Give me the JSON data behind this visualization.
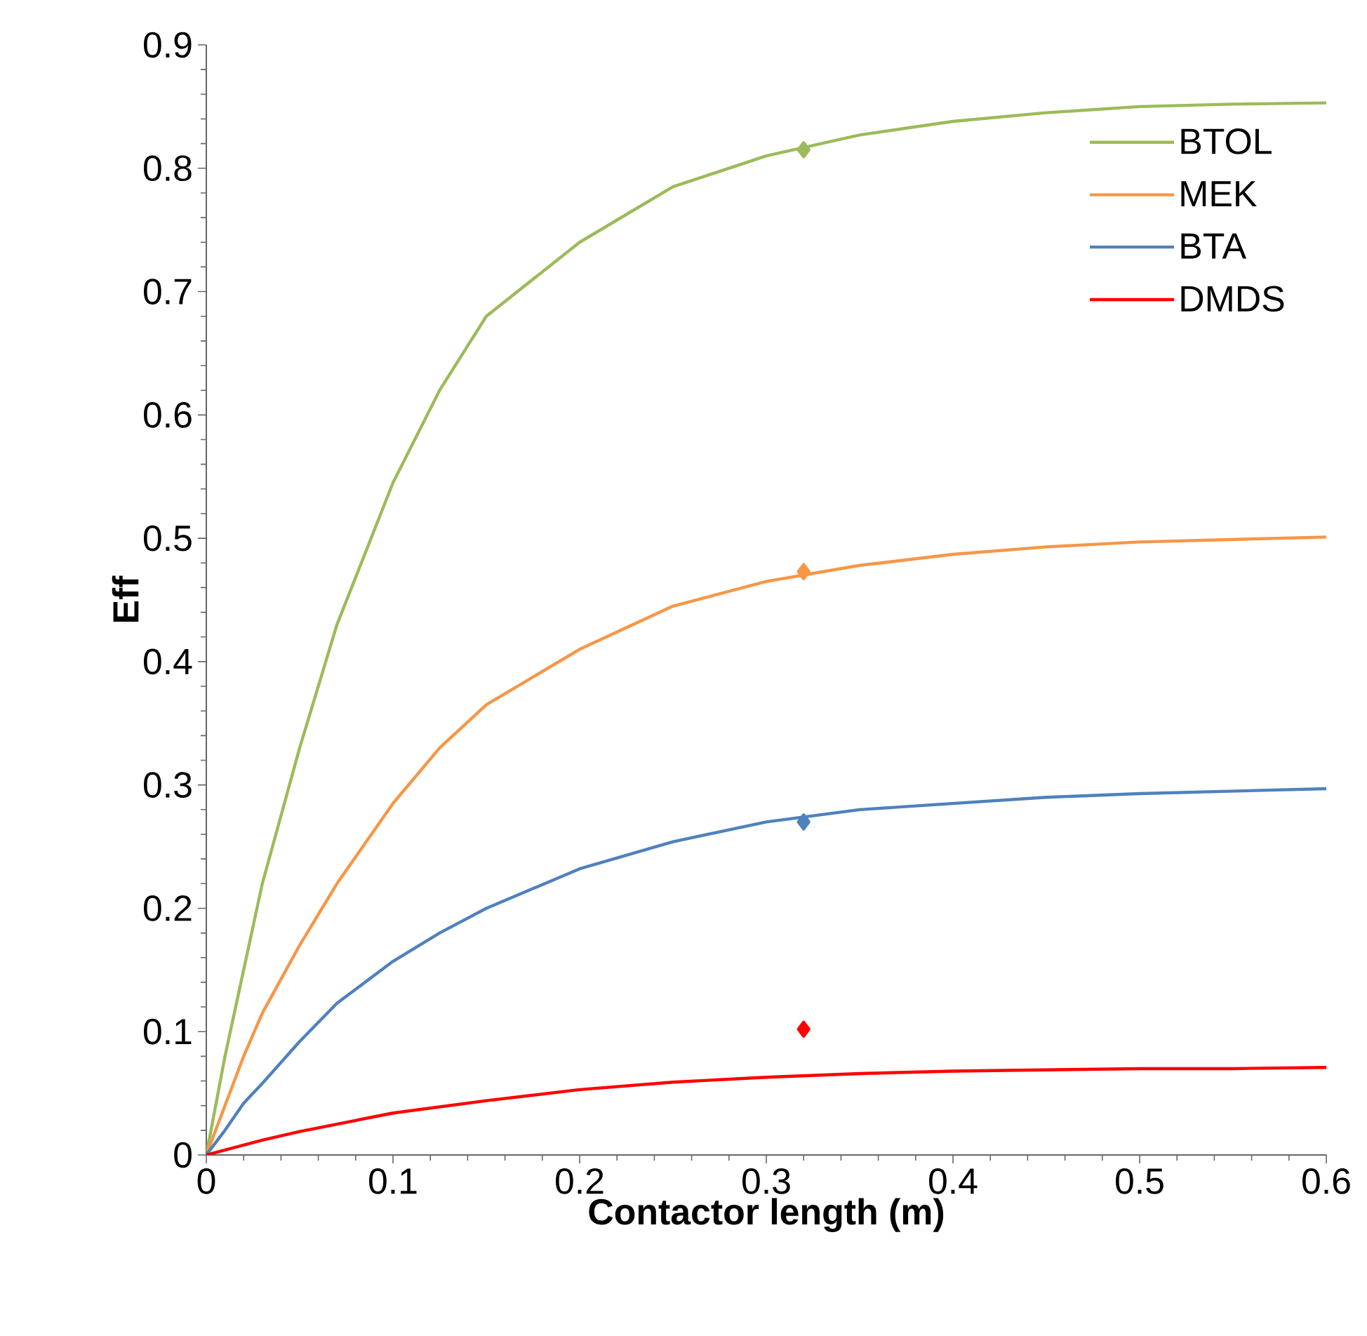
{
  "chart_data": {
    "type": "line",
    "xlabel": "Contactor length (m)",
    "ylabel": "Eff",
    "xlim": [
      0,
      0.6
    ],
    "ylim": [
      0,
      0.9
    ],
    "xticks": [
      0,
      0.1,
      0.2,
      0.3,
      0.4,
      0.5,
      0.6
    ],
    "yticks": [
      0,
      0.1,
      0.2,
      0.3,
      0.4,
      0.5,
      0.6,
      0.7,
      0.8,
      0.9
    ],
    "legend": "top right",
    "series": [
      {
        "name": "BTOL",
        "color": "#9bbb59",
        "x": [
          0,
          0.01,
          0.02,
          0.03,
          0.05,
          0.07,
          0.1,
          0.125,
          0.15,
          0.2,
          0.25,
          0.3,
          0.35,
          0.4,
          0.45,
          0.5,
          0.55,
          0.6
        ],
        "values": [
          0,
          0.08,
          0.15,
          0.22,
          0.33,
          0.43,
          0.545,
          0.62,
          0.68,
          0.74,
          0.785,
          0.81,
          0.827,
          0.838,
          0.845,
          0.85,
          0.852,
          0.853
        ]
      },
      {
        "name": "MEK",
        "color": "#f79646",
        "x": [
          0,
          0.01,
          0.02,
          0.03,
          0.05,
          0.07,
          0.1,
          0.125,
          0.15,
          0.2,
          0.25,
          0.3,
          0.35,
          0.4,
          0.45,
          0.5,
          0.55,
          0.6
        ],
        "values": [
          0,
          0.04,
          0.08,
          0.115,
          0.17,
          0.22,
          0.285,
          0.33,
          0.365,
          0.41,
          0.445,
          0.465,
          0.478,
          0.487,
          0.493,
          0.497,
          0.499,
          0.501
        ]
      },
      {
        "name": "BTA",
        "color": "#4f81bd",
        "x": [
          0,
          0.01,
          0.02,
          0.03,
          0.05,
          0.07,
          0.1,
          0.125,
          0.15,
          0.2,
          0.25,
          0.3,
          0.35,
          0.4,
          0.45,
          0.5,
          0.55,
          0.6
        ],
        "values": [
          0,
          0.02,
          0.042,
          0.058,
          0.092,
          0.123,
          0.157,
          0.18,
          0.2,
          0.232,
          0.254,
          0.27,
          0.28,
          0.285,
          0.29,
          0.293,
          0.295,
          0.297
        ]
      },
      {
        "name": "DMDS",
        "color": "#ff0000",
        "x": [
          0,
          0.01,
          0.02,
          0.03,
          0.05,
          0.07,
          0.1,
          0.125,
          0.15,
          0.2,
          0.25,
          0.3,
          0.35,
          0.4,
          0.45,
          0.5,
          0.55,
          0.6
        ],
        "values": [
          0,
          0.004,
          0.008,
          0.012,
          0.019,
          0.025,
          0.034,
          0.039,
          0.044,
          0.053,
          0.059,
          0.063,
          0.066,
          0.068,
          0.069,
          0.07,
          0.07,
          0.071
        ]
      },
      {
        "type": "scatter",
        "marker": "diamond",
        "color": "#9bbb59",
        "x": [
          0.32
        ],
        "values": [
          0.815
        ]
      },
      {
        "type": "scatter",
        "marker": "diamond",
        "color": "#f79646",
        "x": [
          0.32
        ],
        "values": [
          0.473
        ]
      },
      {
        "type": "scatter",
        "marker": "diamond",
        "color": "#4f81bd",
        "x": [
          0.32
        ],
        "values": [
          0.27
        ]
      },
      {
        "type": "scatter",
        "marker": "diamond",
        "color": "#ff0000",
        "x": [
          0.32
        ],
        "values": [
          0.102
        ]
      }
    ]
  }
}
